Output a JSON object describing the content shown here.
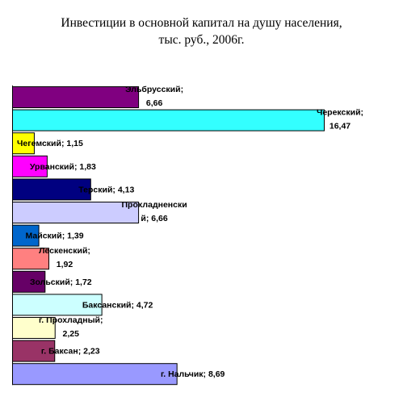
{
  "title_lines": [
    "Инвестиции в основной капитал на душу населения,",
    "тыс. руб., 2006г."
  ],
  "chart_data": {
    "type": "bar",
    "orientation": "horizontal",
    "title": "Инвестиции в основной капитал на душу населения, тыс. руб., 2006г.",
    "categories": [
      "Эльбрусский",
      "Черекский",
      "Чегемский",
      "Урванский",
      "Терский",
      "Прохладненский",
      "Майский",
      "Лескенский",
      "Зольский",
      "Баксанский",
      "г. Прохладный",
      "г. Баксан",
      "г. Нальчик"
    ],
    "values": [
      6.66,
      16.47,
      1.15,
      1.83,
      4.13,
      6.66,
      1.39,
      1.92,
      1.72,
      4.72,
      2.25,
      2.23,
      8.69
    ],
    "labels": [
      [
        "Эльбрусский;",
        "6,66"
      ],
      [
        "Черекский;",
        "16,47"
      ],
      [
        "Чегемский; 1,15"
      ],
      [
        "Урванский; 1,83"
      ],
      [
        "Терский; 4,13"
      ],
      [
        "Прохладненски",
        "й; 6,66"
      ],
      [
        "Майский; 1,39"
      ],
      [
        "Лескенский;",
        "1,92"
      ],
      [
        "Зольский; 1,72"
      ],
      [
        "Баксанский; 4,72"
      ],
      [
        "г. Прохладный;",
        "2,25"
      ],
      [
        "г. Баксан; 2,23"
      ],
      [
        "г. Нальчик; 8,69"
      ]
    ],
    "colors": [
      "#800080",
      "#33FFFF",
      "#FFFF00",
      "#FF00FF",
      "#000080",
      "#CCCCFF",
      "#0066CC",
      "#FF8080",
      "#660066",
      "#CCFFFF",
      "#FFFFCC",
      "#993366",
      "#9999FF"
    ],
    "xlim": [
      0,
      16.47
    ],
    "grid": false,
    "legend": "none"
  }
}
